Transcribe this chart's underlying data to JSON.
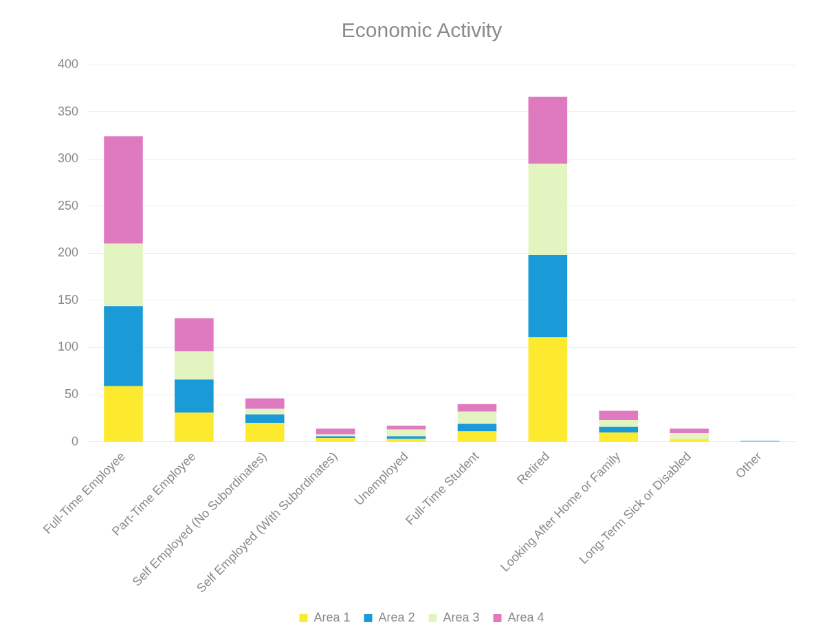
{
  "chart_data": {
    "type": "bar",
    "title": "Economic Activity",
    "stacked": true,
    "categories": [
      "Full-Time Employee",
      "Part-Time Employee",
      "Self Employed (No Subordinates)",
      "Self Employed (With Subordinates)",
      "Unemployed",
      "Full-Time Student",
      "Retired",
      "Looking After Home or Family",
      "Long-Term Sick or Disabled",
      "Other"
    ],
    "series": [
      {
        "name": "Area 1",
        "color": "#fdea2f",
        "values": [
          59,
          31,
          20,
          4,
          3,
          11,
          111,
          10,
          3,
          0
        ]
      },
      {
        "name": "Area 2",
        "color": "#1a9ad6",
        "values": [
          85,
          35,
          9,
          2,
          3,
          8,
          87,
          6,
          0,
          1
        ]
      },
      {
        "name": "Area 3",
        "color": "#e2f5c0",
        "values": [
          66,
          30,
          6,
          2,
          7,
          13,
          97,
          7,
          6,
          0
        ]
      },
      {
        "name": "Area 4",
        "color": "#e07ac0",
        "values": [
          114,
          35,
          11,
          6,
          4,
          8,
          71,
          10,
          5,
          0
        ]
      }
    ],
    "ylim": [
      0,
      400
    ],
    "yticks": [
      0,
      50,
      100,
      150,
      200,
      250,
      300,
      350,
      400
    ],
    "grid": "y",
    "legend": "bottom"
  }
}
